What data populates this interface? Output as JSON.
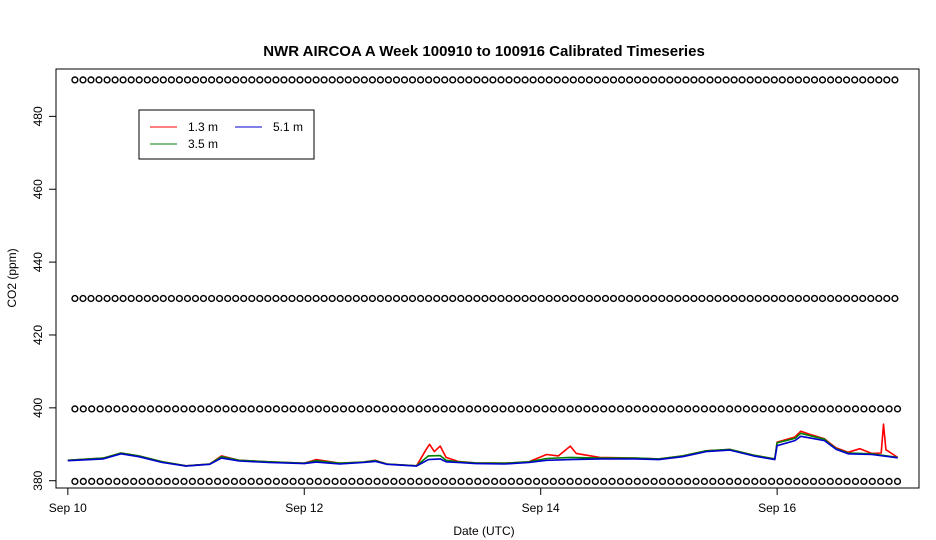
{
  "chart_data": {
    "type": "line",
    "title": "NWR AIRCOA A  Week 100910 to 100916  Calibrated Timeseries",
    "xlabel": "Date (UTC)",
    "ylabel": "CO2 (ppm)",
    "xlim": [
      -0.1,
      7.2
    ],
    "ylim": [
      378,
      493
    ],
    "x_ticks": [
      {
        "label": "Sep 10",
        "value": 0
      },
      {
        "label": "Sep 12",
        "value": 2
      },
      {
        "label": "Sep 14",
        "value": 4
      },
      {
        "label": "Sep 16",
        "value": 6
      }
    ],
    "y_ticks": [
      380,
      400,
      420,
      440,
      460,
      480
    ],
    "legend": {
      "position": "top-left",
      "entries": [
        {
          "label": "1.3 m",
          "color": "#ff0000"
        },
        {
          "label": "5.1 m",
          "color": "#0000cc"
        },
        {
          "label": "3.5 m",
          "color": "#008000"
        }
      ]
    },
    "calibration_markers": {
      "marker": "o",
      "x_start": 0.06,
      "x_end": 7.02,
      "levels": [
        {
          "y": 490,
          "spacing": 0.068
        },
        {
          "y": 430,
          "spacing": 0.068
        },
        {
          "y": 399.7,
          "spacing": 0.071
        },
        {
          "y": 379.8,
          "spacing": 0.071
        }
      ]
    },
    "series": [
      {
        "name": "1.3 m",
        "color": "#ff0000",
        "points": [
          [
            0.0,
            385.6
          ],
          [
            0.3,
            386.2
          ],
          [
            0.45,
            387.6
          ],
          [
            0.6,
            386.8
          ],
          [
            0.8,
            385.2
          ],
          [
            1.0,
            384.1
          ],
          [
            1.2,
            384.6
          ],
          [
            1.3,
            386.8
          ],
          [
            1.45,
            385.6
          ],
          [
            1.7,
            385.2
          ],
          [
            2.0,
            384.8
          ],
          [
            2.1,
            385.8
          ],
          [
            2.3,
            384.8
          ],
          [
            2.5,
            385.1
          ],
          [
            2.6,
            385.6
          ],
          [
            2.7,
            384.6
          ],
          [
            2.95,
            384.1
          ],
          [
            3.03,
            388.5
          ],
          [
            3.06,
            390.0
          ],
          [
            3.1,
            388.0
          ],
          [
            3.15,
            389.5
          ],
          [
            3.2,
            386.4
          ],
          [
            3.3,
            385.3
          ],
          [
            3.45,
            384.9
          ],
          [
            3.7,
            384.8
          ],
          [
            3.9,
            385.2
          ],
          [
            4.05,
            387.2
          ],
          [
            4.15,
            386.8
          ],
          [
            4.25,
            389.5
          ],
          [
            4.3,
            387.5
          ],
          [
            4.5,
            386.4
          ],
          [
            4.8,
            386.2
          ],
          [
            5.0,
            386.0
          ],
          [
            5.2,
            386.8
          ],
          [
            5.4,
            388.2
          ],
          [
            5.6,
            388.6
          ],
          [
            5.8,
            387.0
          ],
          [
            5.98,
            386.0
          ],
          [
            6.0,
            390.6
          ],
          [
            6.15,
            392.0
          ],
          [
            6.2,
            393.6
          ],
          [
            6.3,
            392.5
          ],
          [
            6.4,
            391.5
          ],
          [
            6.45,
            390.2
          ],
          [
            6.5,
            389.0
          ],
          [
            6.6,
            387.8
          ],
          [
            6.7,
            388.8
          ],
          [
            6.8,
            387.5
          ],
          [
            6.88,
            387.6
          ],
          [
            6.9,
            395.5
          ],
          [
            6.92,
            388.5
          ],
          [
            7.02,
            386.4
          ]
        ]
      },
      {
        "name": "3.5 m",
        "color": "#008000",
        "points": [
          [
            0.0,
            385.6
          ],
          [
            0.3,
            386.2
          ],
          [
            0.45,
            387.6
          ],
          [
            0.6,
            386.8
          ],
          [
            0.8,
            385.2
          ],
          [
            1.0,
            384.1
          ],
          [
            1.2,
            384.6
          ],
          [
            1.3,
            386.6
          ],
          [
            1.45,
            385.6
          ],
          [
            1.7,
            385.2
          ],
          [
            2.0,
            384.8
          ],
          [
            2.1,
            385.5
          ],
          [
            2.3,
            384.8
          ],
          [
            2.5,
            385.1
          ],
          [
            2.6,
            385.5
          ],
          [
            2.7,
            384.6
          ],
          [
            2.95,
            384.1
          ],
          [
            3.05,
            386.8
          ],
          [
            3.15,
            386.9
          ],
          [
            3.2,
            385.6
          ],
          [
            3.3,
            385.2
          ],
          [
            3.45,
            384.9
          ],
          [
            3.7,
            384.8
          ],
          [
            3.9,
            385.2
          ],
          [
            4.05,
            386.1
          ],
          [
            4.25,
            386.4
          ],
          [
            4.5,
            386.2
          ],
          [
            4.8,
            386.2
          ],
          [
            5.0,
            386.0
          ],
          [
            5.2,
            386.8
          ],
          [
            5.4,
            388.2
          ],
          [
            5.6,
            388.6
          ],
          [
            5.8,
            387.0
          ],
          [
            5.98,
            386.0
          ],
          [
            6.0,
            390.4
          ],
          [
            6.15,
            391.6
          ],
          [
            6.2,
            393.0
          ],
          [
            6.3,
            392.2
          ],
          [
            6.4,
            391.4
          ],
          [
            6.45,
            390.0
          ],
          [
            6.5,
            388.8
          ],
          [
            6.6,
            387.6
          ],
          [
            6.8,
            387.4
          ],
          [
            7.02,
            386.4
          ]
        ]
      },
      {
        "name": "5.1 m",
        "color": "#0000cc",
        "points": [
          [
            0.0,
            385.5
          ],
          [
            0.3,
            386.0
          ],
          [
            0.45,
            387.4
          ],
          [
            0.6,
            386.6
          ],
          [
            0.8,
            385.0
          ],
          [
            1.0,
            384.0
          ],
          [
            1.2,
            384.5
          ],
          [
            1.3,
            386.2
          ],
          [
            1.45,
            385.4
          ],
          [
            1.7,
            385.0
          ],
          [
            2.0,
            384.7
          ],
          [
            2.1,
            385.1
          ],
          [
            2.3,
            384.6
          ],
          [
            2.5,
            385.0
          ],
          [
            2.6,
            385.3
          ],
          [
            2.7,
            384.5
          ],
          [
            2.95,
            384.0
          ],
          [
            3.05,
            385.8
          ],
          [
            3.15,
            386.0
          ],
          [
            3.2,
            385.2
          ],
          [
            3.3,
            385.0
          ],
          [
            3.45,
            384.7
          ],
          [
            3.7,
            384.6
          ],
          [
            3.9,
            385.0
          ],
          [
            4.05,
            385.6
          ],
          [
            4.25,
            385.8
          ],
          [
            4.5,
            386.0
          ],
          [
            4.8,
            386.0
          ],
          [
            5.0,
            385.8
          ],
          [
            5.2,
            386.6
          ],
          [
            5.4,
            388.0
          ],
          [
            5.6,
            388.4
          ],
          [
            5.8,
            386.8
          ],
          [
            5.98,
            385.8
          ],
          [
            6.0,
            389.6
          ],
          [
            6.15,
            391.0
          ],
          [
            6.2,
            392.2
          ],
          [
            6.3,
            391.6
          ],
          [
            6.4,
            391.0
          ],
          [
            6.45,
            389.8
          ],
          [
            6.5,
            388.6
          ],
          [
            6.6,
            387.4
          ],
          [
            6.8,
            387.2
          ],
          [
            7.02,
            386.3
          ]
        ]
      }
    ]
  }
}
